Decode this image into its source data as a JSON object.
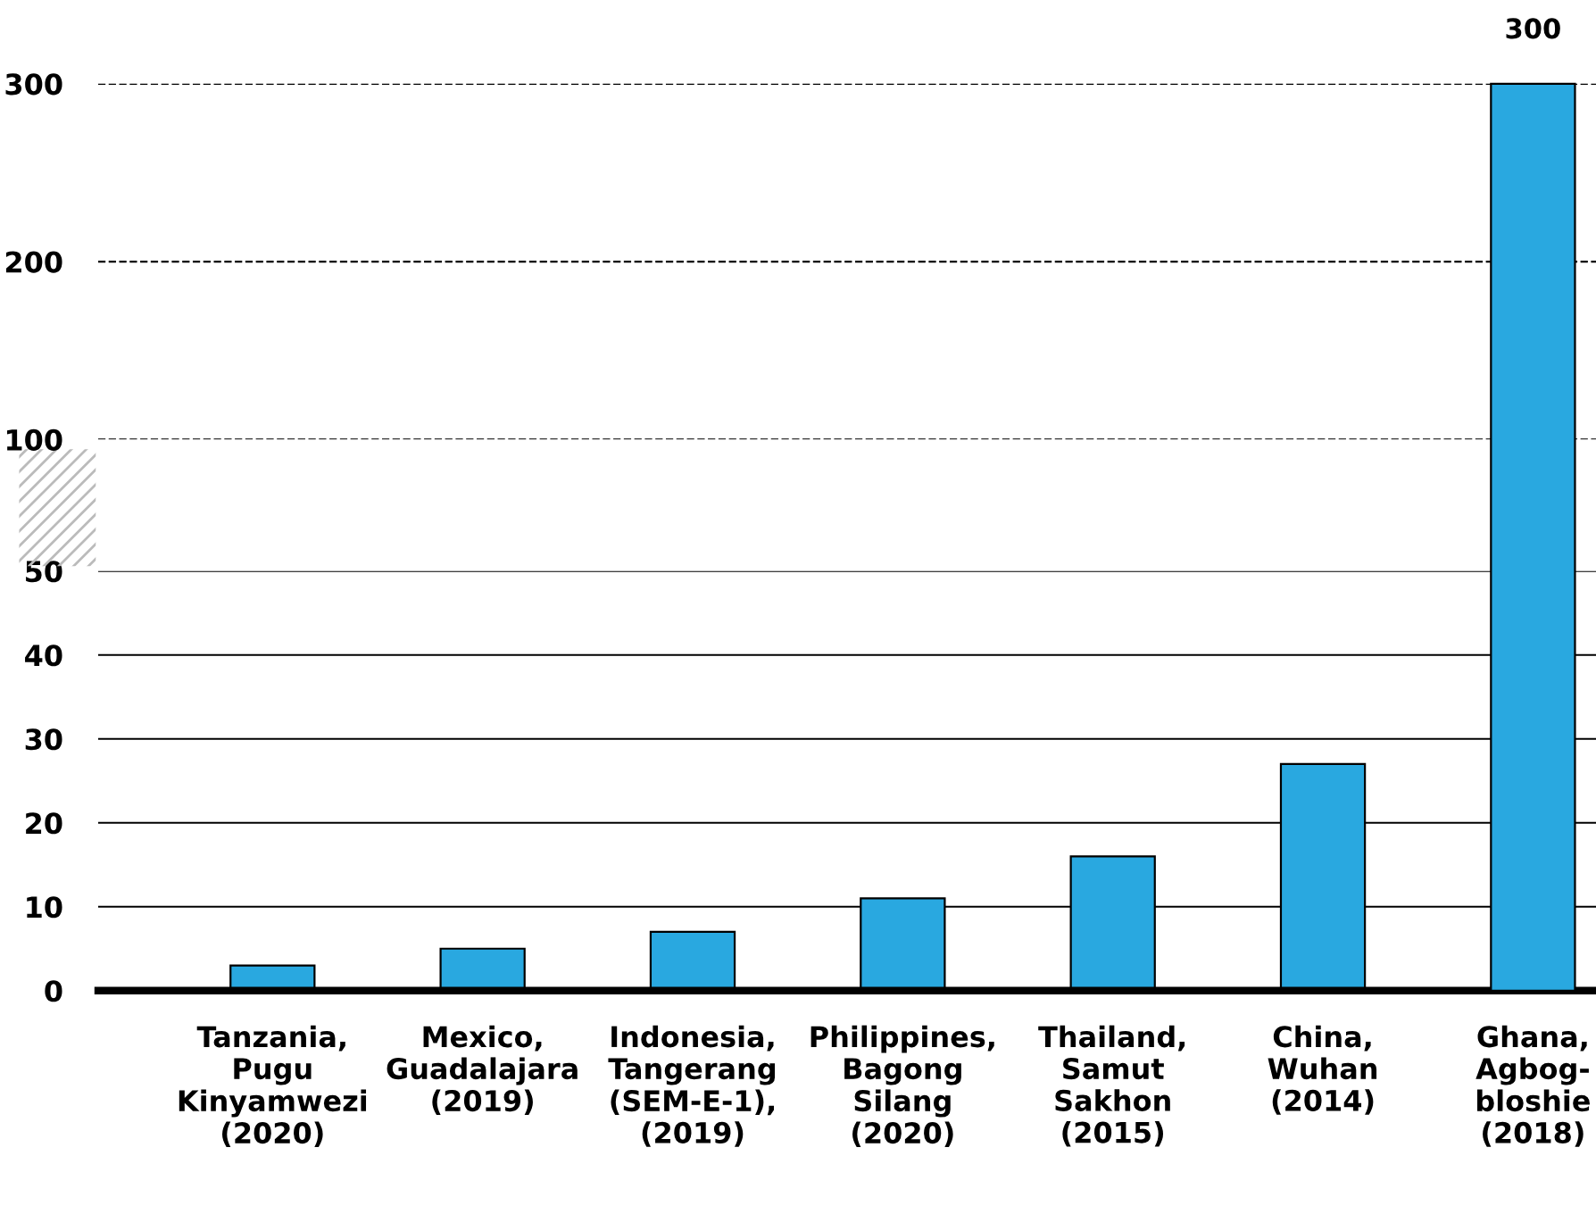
{
  "chart_data": [
    {
      "type": "bar",
      "categories": [
        null,
        null,
        null,
        null,
        null,
        null,
        null
      ],
      "values": [
        null,
        null,
        null,
        null,
        null,
        null,
        300
      ],
      "legend": false,
      "value_labels": [
        null,
        null,
        null,
        null,
        null,
        null,
        "300"
      ],
      "color": "#29a8e0",
      "ylim": [
        100,
        300
      ],
      "yticks": [
        100,
        200,
        300
      ],
      "grid": "y",
      "tick_labels": "y"
    },
    {
      "type": "bar",
      "categories": [
        "Tanzania,\nPugu\nKinyamwezi\n(2020)",
        "Mexico,\nGuadalajara\n(2019)",
        "Indonesia,\nTangerang\n(SEM-E-1),\n(2019)",
        "Philippines,\nBagong\nSilang\n(2020)",
        "Thailand,\nSamut\nSakhon\n(2015)",
        "China,\nWuhan\n(2014)",
        "Ghana,\nAgbog-\nbloshie\n(2018)"
      ],
      "values": [
        3,
        5,
        7,
        11,
        16,
        27,
        null
      ],
      "color": "#29a8e0",
      "ylim": [
        0,
        50
      ],
      "yticks": [
        0,
        10,
        20,
        30,
        40,
        50
      ],
      "legend": false,
      "grid": "y"
    }
  ]
}
